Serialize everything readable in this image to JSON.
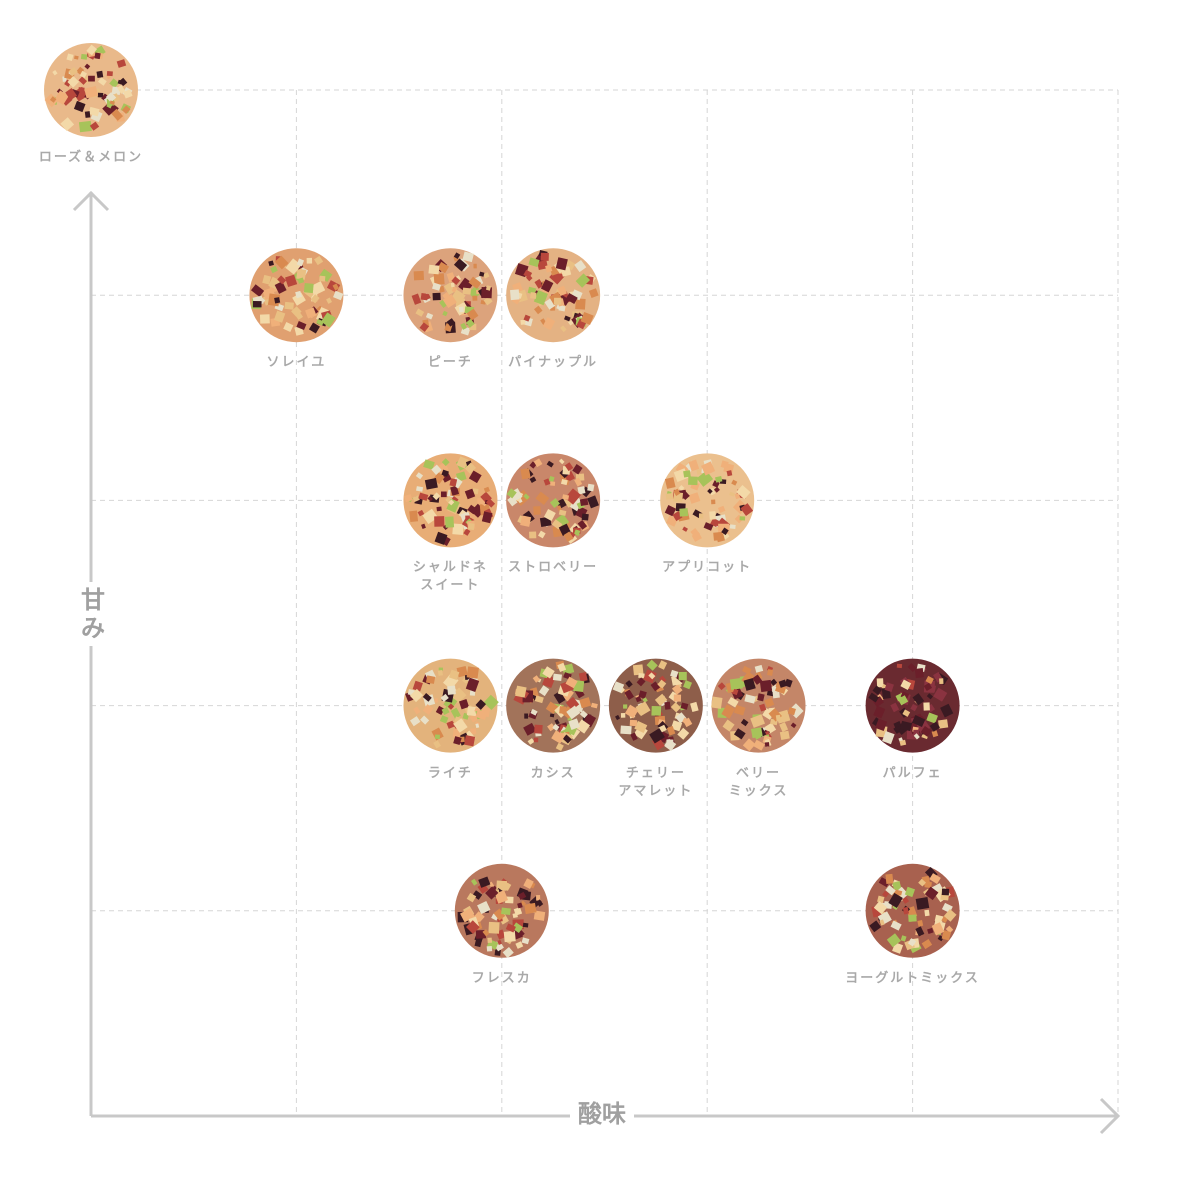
{
  "chart_data": {
    "type": "scatter",
    "xlabel": "酸味",
    "ylabel": "甘み",
    "xlim": [
      0,
      5
    ],
    "ylim": [
      0,
      5
    ],
    "grid": true,
    "grid_style": "dashed",
    "colors": {
      "axis": "#c8c8c8",
      "grid": "#d6d6d6",
      "label": "#a9a9a9"
    },
    "points": [
      {
        "name": "ローズ＆メロン",
        "lines": [
          "ローズ＆メロン"
        ],
        "x": 0,
        "y": 5,
        "tone": "#e9b98a"
      },
      {
        "name": "ソレイユ",
        "lines": [
          "ソレイユ"
        ],
        "x": 1,
        "y": 4,
        "tone": "#e0a070"
      },
      {
        "name": "ピーチ",
        "lines": [
          "ピーチ"
        ],
        "x": 1.75,
        "y": 4,
        "tone": "#dca37c"
      },
      {
        "name": "パイナップル",
        "lines": [
          "パイナップル"
        ],
        "x": 2.25,
        "y": 4,
        "tone": "#e4b283"
      },
      {
        "name": "シャルドネスイート",
        "lines": [
          "シャルドネ",
          "スイート"
        ],
        "x": 1.75,
        "y": 3,
        "tone": "#e8ad76"
      },
      {
        "name": "ストロベリー",
        "lines": [
          "ストロベリー"
        ],
        "x": 2.25,
        "y": 3,
        "tone": "#c9876a"
      },
      {
        "name": "アプリコット",
        "lines": [
          "アプリコット"
        ],
        "x": 3,
        "y": 3,
        "tone": "#ebc08e"
      },
      {
        "name": "ライチ",
        "lines": [
          "ライチ"
        ],
        "x": 1.75,
        "y": 2,
        "tone": "#e3b37c"
      },
      {
        "name": "カシス",
        "lines": [
          "カシス"
        ],
        "x": 2.25,
        "y": 2,
        "tone": "#a2735a"
      },
      {
        "name": "チェリーアマレット",
        "lines": [
          "チェリー",
          "アマレット"
        ],
        "x": 2.75,
        "y": 2,
        "tone": "#8e5e4a"
      },
      {
        "name": "ベリーミックス",
        "lines": [
          "ベリー",
          "ミックス"
        ],
        "x": 3.25,
        "y": 2,
        "tone": "#c48668"
      },
      {
        "name": "パルフェ",
        "lines": [
          "パルフェ"
        ],
        "x": 4,
        "y": 2,
        "tone": "#6a2a30"
      },
      {
        "name": "フレスカ",
        "lines": [
          "フレスカ"
        ],
        "x": 2,
        "y": 1,
        "tone": "#b9785e"
      },
      {
        "name": "ヨーグルトミックス",
        "lines": [
          "ヨーグルトミックス"
        ],
        "x": 4,
        "y": 1,
        "tone": "#a8614f"
      }
    ]
  }
}
